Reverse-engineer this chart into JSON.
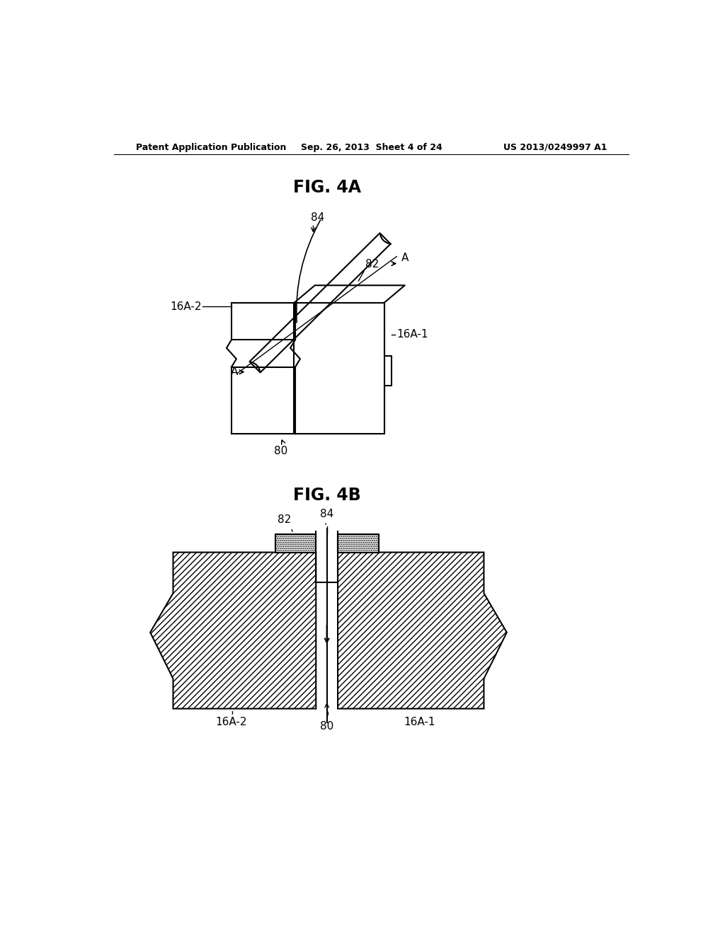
{
  "bg_color": "#ffffff",
  "header_left": "Patent Application Publication",
  "header_center": "Sep. 26, 2013  Sheet 4 of 24",
  "header_right": "US 2013/0249997 A1",
  "fig4a_title": "FIG. 4A",
  "fig4b_title": "FIG. 4B",
  "label_84_4a": "84",
  "label_82_4a": "82",
  "label_A_top": "A",
  "label_16A2_4a": "16A-2",
  "label_16A1_4a": "16A-1",
  "label_A_bot": "A",
  "label_80_4a": "80",
  "label_84_4b": "84",
  "label_82_4b": "82",
  "label_16A2_4b": "16A-2",
  "label_16A1_4b": "16A-1",
  "label_80_4b": "80"
}
